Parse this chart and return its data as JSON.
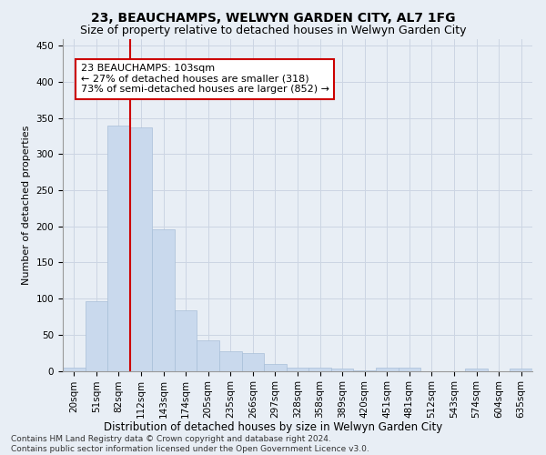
{
  "title": "23, BEAUCHAMPS, WELWYN GARDEN CITY, AL7 1FG",
  "subtitle": "Size of property relative to detached houses in Welwyn Garden City",
  "xlabel": "Distribution of detached houses by size in Welwyn Garden City",
  "ylabel": "Number of detached properties",
  "bar_values": [
    5,
    97,
    340,
    337,
    196,
    84,
    42,
    27,
    24,
    10,
    5,
    4,
    3,
    1,
    5,
    5,
    0,
    0,
    3,
    0,
    3
  ],
  "bin_labels": [
    "20sqm",
    "51sqm",
    "82sqm",
    "112sqm",
    "143sqm",
    "174sqm",
    "205sqm",
    "235sqm",
    "266sqm",
    "297sqm",
    "328sqm",
    "358sqm",
    "389sqm",
    "420sqm",
    "451sqm",
    "481sqm",
    "512sqm",
    "543sqm",
    "574sqm",
    "604sqm",
    "635sqm"
  ],
  "bar_color": "#c9d9ed",
  "bar_edge_color": "#a8bfd8",
  "vline_x_index": 2,
  "vline_color": "#cc0000",
  "annotation_text": "23 BEAUCHAMPS: 103sqm\n← 27% of detached houses are smaller (318)\n73% of semi-detached houses are larger (852) →",
  "annotation_box_color": "#ffffff",
  "annotation_box_edge": "#cc0000",
  "ylim": [
    0,
    460
  ],
  "yticks": [
    0,
    50,
    100,
    150,
    200,
    250,
    300,
    350,
    400,
    450
  ],
  "grid_color": "#ccd5e3",
  "background_color": "#e8eef5",
  "footnote": "Contains HM Land Registry data © Crown copyright and database right 2024.\nContains public sector information licensed under the Open Government Licence v3.0.",
  "title_fontsize": 10,
  "subtitle_fontsize": 9,
  "xlabel_fontsize": 8.5,
  "ylabel_fontsize": 8,
  "tick_fontsize": 7.5,
  "annotation_fontsize": 8,
  "footnote_fontsize": 6.5
}
